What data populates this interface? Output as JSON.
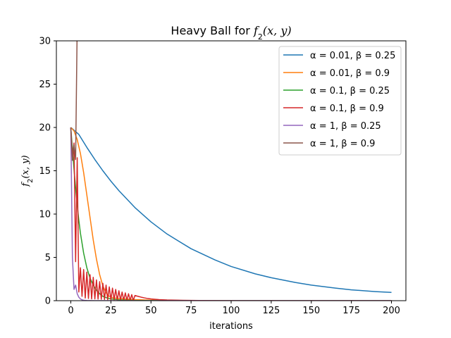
{
  "chart_data": {
    "type": "line",
    "title": "Heavy Ball for f2(x, y)",
    "xlabel": "iterations",
    "ylabel": "f2(x, y)",
    "xlim": [
      -9,
      209
    ],
    "ylim": [
      0,
      30
    ],
    "xticks": [
      0,
      25,
      50,
      75,
      100,
      125,
      150,
      175,
      200
    ],
    "yticks": [
      0,
      5,
      10,
      15,
      20,
      25,
      30
    ],
    "grid": false,
    "legend_position": "top-right",
    "series": [
      {
        "name": "α = 0.01, β = 0.25",
        "color": "#1f77b4",
        "x": [
          0,
          5,
          10,
          15,
          20,
          25,
          30,
          40,
          50,
          60,
          75,
          90,
          100,
          115,
          125,
          140,
          150,
          165,
          175,
          190,
          200
        ],
        "y": [
          20,
          19.2,
          17.7,
          16.3,
          15.0,
          13.8,
          12.7,
          10.75,
          9.1,
          7.7,
          6.0,
          4.7,
          3.95,
          3.1,
          2.65,
          2.1,
          1.8,
          1.45,
          1.25,
          1.05,
          0.95
        ]
      },
      {
        "name": "α = 0.01, β = 0.9",
        "color": "#ff7f0e",
        "x": [
          0,
          2,
          4,
          6,
          8,
          10,
          12,
          14,
          16,
          18,
          20,
          22,
          24,
          26,
          28,
          30,
          35,
          40,
          50,
          60,
          75,
          100,
          150,
          200
        ],
        "y": [
          20,
          19.6,
          18.6,
          17.0,
          14.8,
          12.2,
          9.6,
          7.0,
          4.8,
          3.0,
          1.7,
          0.9,
          0.5,
          0.35,
          0.3,
          0.25,
          0.18,
          0.12,
          0.06,
          0.03,
          0.01,
          0,
          0,
          0
        ]
      },
      {
        "name": "α = 0.1, β = 0.25",
        "color": "#2ca02c",
        "x": [
          0,
          1,
          2,
          3,
          4,
          5,
          6,
          8,
          10,
          12,
          14,
          16,
          18,
          20,
          22,
          25,
          30,
          40,
          60,
          100,
          200
        ],
        "y": [
          20,
          17.5,
          15.2,
          13.0,
          11.0,
          9.3,
          7.8,
          5.5,
          3.8,
          2.6,
          1.8,
          1.2,
          0.8,
          0.5,
          0.35,
          0.2,
          0.1,
          0.03,
          0,
          0,
          0
        ]
      },
      {
        "name": "α = 0.1, β = 0.9",
        "color": "#d62728",
        "x": [
          0,
          1,
          2,
          3,
          4,
          5,
          6,
          7,
          8,
          9,
          10,
          11,
          12,
          13,
          14,
          15,
          16,
          17,
          18,
          19,
          20,
          21,
          22,
          23,
          24,
          25,
          26,
          27,
          28,
          29,
          30,
          31,
          32,
          33,
          34,
          35,
          36,
          37,
          38,
          39,
          40,
          42,
          44,
          46,
          48,
          50,
          55,
          60,
          70,
          80,
          100,
          150,
          200
        ],
        "y": [
          20,
          16.5,
          18.2,
          4.5,
          16.5,
          1.0,
          3.8,
          0.5,
          3.6,
          0.3,
          3.3,
          0.25,
          3.0,
          0.2,
          2.7,
          0.2,
          2.4,
          0.18,
          2.2,
          0.16,
          2.0,
          0.14,
          1.8,
          0.12,
          1.6,
          0.1,
          1.45,
          0.09,
          1.3,
          0.08,
          1.15,
          0.07,
          1.0,
          0.06,
          0.9,
          0.05,
          0.8,
          0.04,
          0.7,
          0.04,
          0.6,
          0.5,
          0.4,
          0.32,
          0.25,
          0.2,
          0.12,
          0.08,
          0.04,
          0.02,
          0,
          0,
          0
        ]
      },
      {
        "name": "α = 1, β = 0.25",
        "color": "#9467bd",
        "x": [
          0,
          1,
          2,
          3,
          4,
          5,
          6,
          7,
          8,
          10,
          12,
          15,
          20,
          30,
          50,
          100,
          200
        ],
        "y": [
          20,
          5.0,
          1.3,
          1.8,
          0.8,
          0.4,
          0.2,
          0.1,
          0.05,
          0.02,
          0.01,
          0,
          0,
          0,
          0,
          0,
          0
        ]
      },
      {
        "name": "α = 1, β = 0.9",
        "color": "#8c564b",
        "x": [
          0,
          1,
          2,
          3,
          4
        ],
        "y": [
          20,
          16.2,
          18.0,
          16.3,
          32
        ]
      }
    ]
  }
}
